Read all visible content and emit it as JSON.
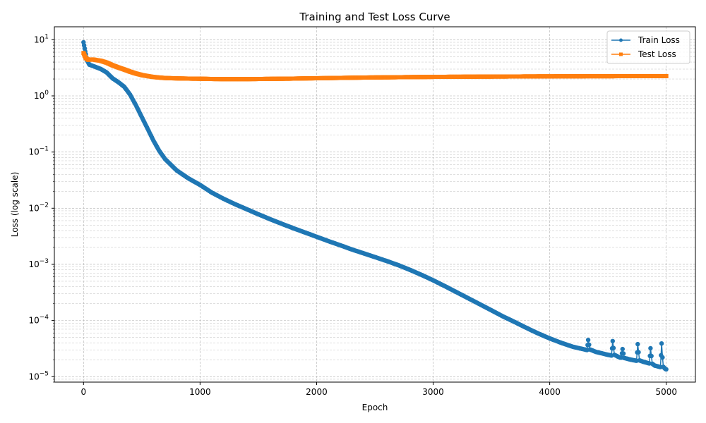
{
  "chart_data": {
    "type": "line",
    "title": "Training and Test Loss Curve",
    "xlabel": "Epoch",
    "ylabel": "Loss (log scale)",
    "xlim": [
      -250,
      5250
    ],
    "ylim": [
      8e-06,
      17
    ],
    "yscale": "log",
    "xticks": [
      0,
      1000,
      2000,
      3000,
      4000,
      5000
    ],
    "xtick_labels": [
      "0",
      "1000",
      "2000",
      "3000",
      "4000",
      "5000"
    ],
    "yticks": [
      {
        "value": 10,
        "mantissa": "10",
        "exponent": "1"
      },
      {
        "value": 1,
        "mantissa": "10",
        "exponent": "0"
      },
      {
        "value": 0.1,
        "mantissa": "10",
        "exponent": "−1"
      },
      {
        "value": 0.01,
        "mantissa": "10",
        "exponent": "−2"
      },
      {
        "value": 0.001,
        "mantissa": "10",
        "exponent": "−3"
      },
      {
        "value": 0.0001,
        "mantissa": "10",
        "exponent": "−4"
      },
      {
        "value": 1e-05,
        "mantissa": "10",
        "exponent": "−5"
      }
    ],
    "grid": true,
    "legend_position": "top-right",
    "series": [
      {
        "name": "Train Loss",
        "color": "#1f77b4",
        "marker": "circle",
        "points": [
          [
            0,
            9.0
          ],
          [
            10,
            7.0
          ],
          [
            20,
            5.5
          ],
          [
            30,
            4.3
          ],
          [
            50,
            3.6
          ],
          [
            100,
            3.3
          ],
          [
            150,
            3.0
          ],
          [
            200,
            2.6
          ],
          [
            250,
            2.05
          ],
          [
            300,
            1.75
          ],
          [
            350,
            1.45
          ],
          [
            400,
            1.05
          ],
          [
            450,
            0.68
          ],
          [
            500,
            0.42
          ],
          [
            550,
            0.26
          ],
          [
            600,
            0.16
          ],
          [
            650,
            0.105
          ],
          [
            700,
            0.075
          ],
          [
            800,
            0.047
          ],
          [
            900,
            0.034
          ],
          [
            1000,
            0.026
          ],
          [
            1100,
            0.019
          ],
          [
            1200,
            0.0148
          ],
          [
            1300,
            0.0118
          ],
          [
            1400,
            0.0096
          ],
          [
            1500,
            0.0078
          ],
          [
            1600,
            0.0064
          ],
          [
            1700,
            0.0053
          ],
          [
            1800,
            0.0044
          ],
          [
            1900,
            0.0037
          ],
          [
            2000,
            0.0031
          ],
          [
            2100,
            0.0026
          ],
          [
            2200,
            0.0022
          ],
          [
            2300,
            0.00185
          ],
          [
            2400,
            0.00158
          ],
          [
            2500,
            0.00135
          ],
          [
            2600,
            0.00115
          ],
          [
            2700,
            0.00097
          ],
          [
            2800,
            0.0008
          ],
          [
            2900,
            0.00065
          ],
          [
            3000,
            0.00052
          ],
          [
            3100,
            0.00041
          ],
          [
            3200,
            0.00032
          ],
          [
            3300,
            0.00025
          ],
          [
            3400,
            0.000195
          ],
          [
            3500,
            0.000152
          ],
          [
            3600,
            0.000118
          ],
          [
            3700,
            9.4e-05
          ],
          [
            3800,
            7.4e-05
          ],
          [
            3900,
            5.9e-05
          ],
          [
            4000,
            4.8e-05
          ],
          [
            4100,
            4e-05
          ],
          [
            4200,
            3.4e-05
          ],
          [
            4300,
            3.05e-05
          ],
          [
            4320,
            2.98e-05
          ],
          [
            4330,
            4.5e-05
          ],
          [
            4345,
            3.05e-05
          ],
          [
            4400,
            2.75e-05
          ],
          [
            4500,
            2.45e-05
          ],
          [
            4530,
            2.38e-05
          ],
          [
            4540,
            4.3e-05
          ],
          [
            4555,
            2.45e-05
          ],
          [
            4600,
            2.2e-05
          ],
          [
            4615,
            2.18e-05
          ],
          [
            4625,
            3.1e-05
          ],
          [
            4640,
            2.15e-05
          ],
          [
            4700,
            2e-05
          ],
          [
            4745,
            1.92e-05
          ],
          [
            4755,
            3.8e-05
          ],
          [
            4770,
            1.95e-05
          ],
          [
            4800,
            1.85e-05
          ],
          [
            4855,
            1.72e-05
          ],
          [
            4865,
            3.2e-05
          ],
          [
            4880,
            1.7e-05
          ],
          [
            4900,
            1.58e-05
          ],
          [
            4950,
            1.48e-05
          ],
          [
            4960,
            3.9e-05
          ],
          [
            4968,
            2.2e-05
          ],
          [
            4975,
            1.5e-05
          ],
          [
            4990,
            1.38e-05
          ],
          [
            5000,
            1.35e-05
          ]
        ]
      },
      {
        "name": "Test Loss",
        "color": "#ff7f0e",
        "marker": "square",
        "points": [
          [
            0,
            5.8
          ],
          [
            10,
            5.2
          ],
          [
            20,
            4.7
          ],
          [
            40,
            4.4
          ],
          [
            80,
            4.45
          ],
          [
            150,
            4.2
          ],
          [
            200,
            3.9
          ],
          [
            250,
            3.5
          ],
          [
            300,
            3.2
          ],
          [
            350,
            2.95
          ],
          [
            400,
            2.7
          ],
          [
            450,
            2.5
          ],
          [
            500,
            2.35
          ],
          [
            550,
            2.25
          ],
          [
            600,
            2.17
          ],
          [
            650,
            2.12
          ],
          [
            700,
            2.08
          ],
          [
            800,
            2.05
          ],
          [
            900,
            2.03
          ],
          [
            1000,
            2.02
          ],
          [
            1100,
            2.0
          ],
          [
            1200,
            1.99
          ],
          [
            1300,
            1.99
          ],
          [
            1400,
            1.99
          ],
          [
            1500,
            2.0
          ],
          [
            1600,
            2.01
          ],
          [
            1700,
            2.02
          ],
          [
            1800,
            2.03
          ],
          [
            1900,
            2.05
          ],
          [
            2000,
            2.06
          ],
          [
            2200,
            2.09
          ],
          [
            2400,
            2.12
          ],
          [
            2600,
            2.14
          ],
          [
            2800,
            2.16
          ],
          [
            3000,
            2.18
          ],
          [
            3200,
            2.19
          ],
          [
            3400,
            2.2
          ],
          [
            3600,
            2.21
          ],
          [
            3800,
            2.22
          ],
          [
            4000,
            2.23
          ],
          [
            4200,
            2.235
          ],
          [
            4400,
            2.24
          ],
          [
            4600,
            2.245
          ],
          [
            4800,
            2.25
          ],
          [
            5000,
            2.25
          ]
        ]
      }
    ]
  }
}
